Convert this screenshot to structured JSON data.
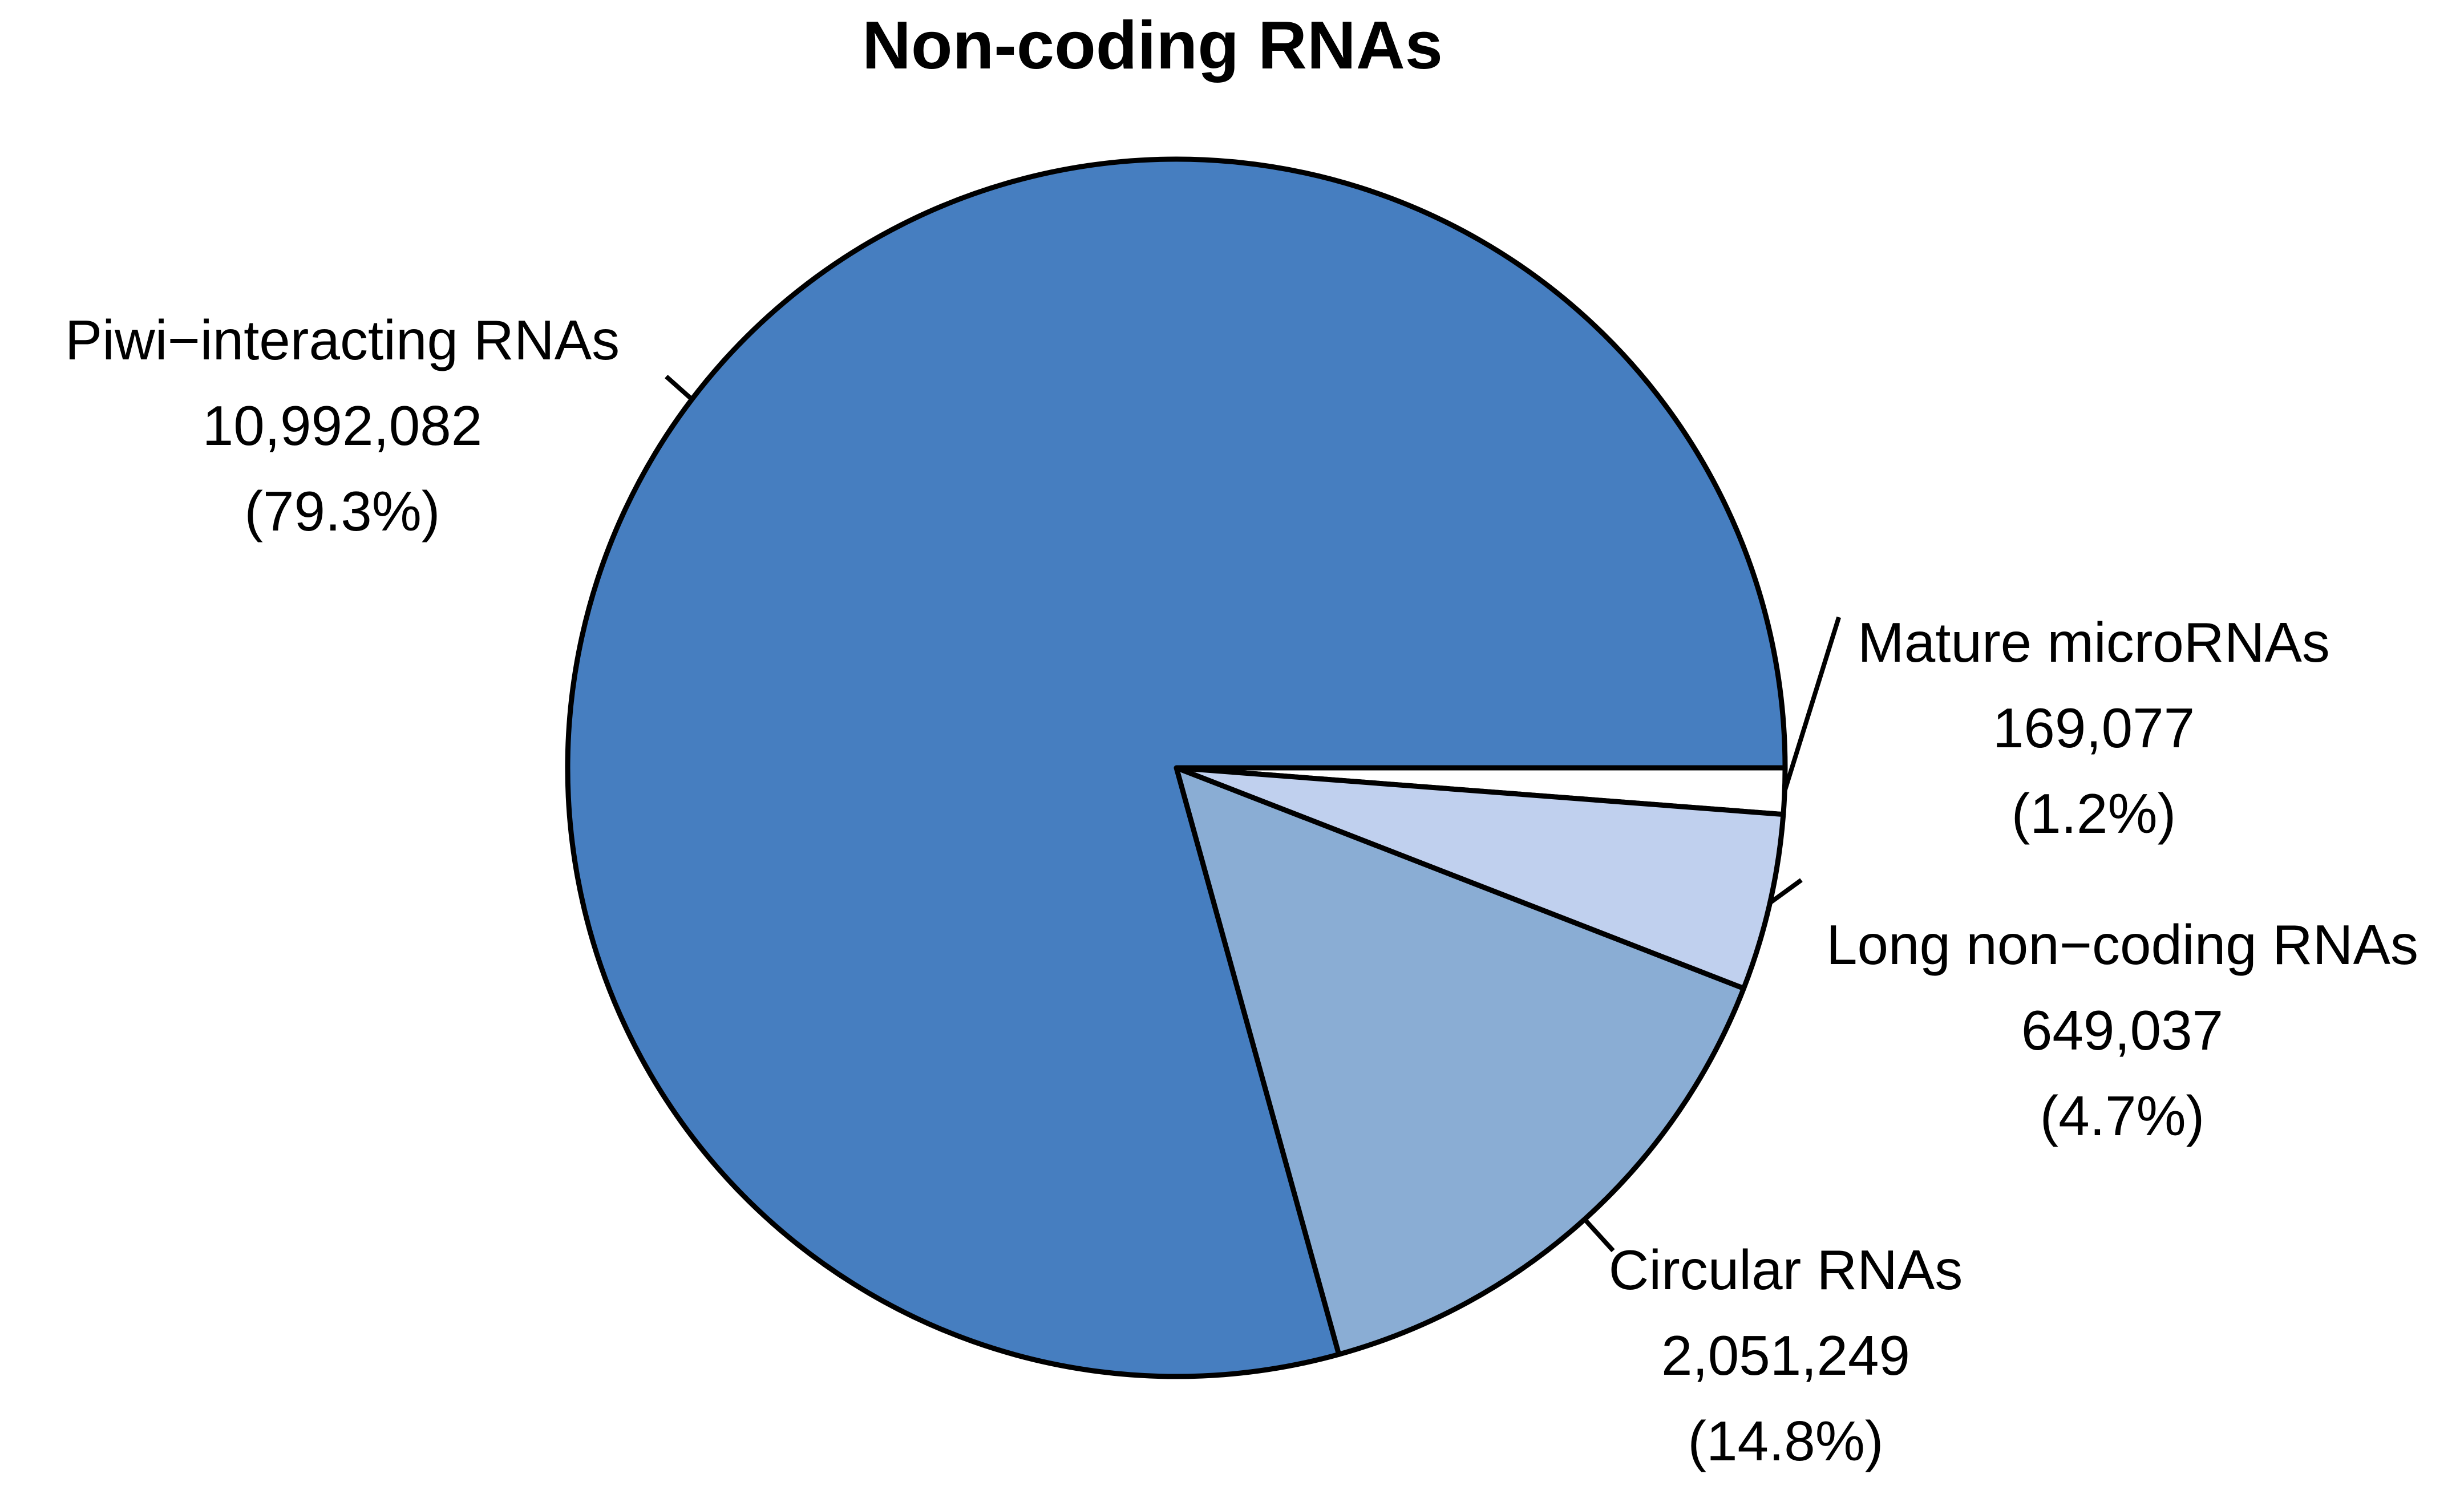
{
  "chart_data": {
    "type": "pie",
    "title": "Non-coding RNAs",
    "slices": [
      {
        "name": "Mature microRNAs",
        "value": 169077,
        "value_label": "169,077",
        "percent_label": "(1.2%)",
        "color": "#ffffff"
      },
      {
        "name": "Long non−coding RNAs",
        "value": 649037,
        "value_label": "649,037",
        "percent_label": "(4.7%)",
        "color": "#c0d0ee"
      },
      {
        "name": "Circular RNAs",
        "value": 2051249,
        "value_label": "2,051,249",
        "percent_label": "(14.8%)",
        "color": "#8aadd4"
      },
      {
        "name": "Piwi−interacting RNAs",
        "value": 10992082,
        "value_label": "10,992,082",
        "percent_label": "(79.3%)",
        "color": "#467ec0"
      }
    ],
    "start_angle": "3 o'clock",
    "direction": "clockwise",
    "edge_color": "#000000"
  }
}
